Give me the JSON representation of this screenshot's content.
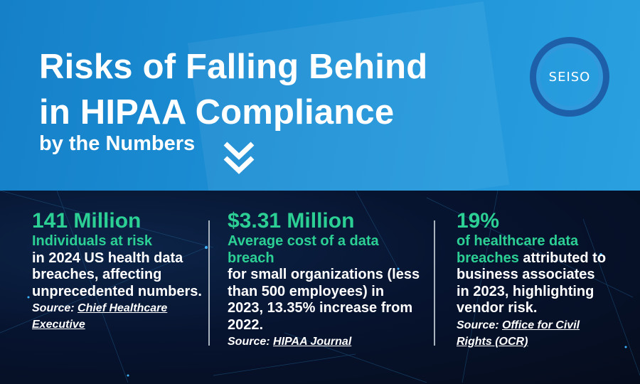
{
  "header": {
    "title_line1": "Risks of Falling Behind",
    "title_line2": "in HIPAA Compliance",
    "subtitle": "by the Numbers",
    "scroll_icon": "double-chevron-down-icon",
    "logo_text": "SEISO"
  },
  "stats": [
    {
      "value": "141 Million",
      "highlight": "Individuals at risk",
      "text": "in 2024 US health data breaches, affecting unprecedented numbers.",
      "source_label": "Source:",
      "source_link": "Chief Healthcare Executive"
    },
    {
      "value": "$3.31 Million",
      "highlight": "Average cost of a data breach",
      "text": "for small organizations (less than 500 employees) in 2023, 13.35% increase from 2022.",
      "source_label": "Source:",
      "source_link": "HIPAA Journal"
    },
    {
      "value": "19%",
      "highlight": "of healthcare data breaches",
      "text": " attributed to business associates in 2023, highlighting vendor risk.",
      "source_label": "Source:",
      "source_link": "Office for Civil Rights (OCR)"
    }
  ],
  "colors": {
    "accent": "#2ccf94",
    "header_bg": "#1e93d8",
    "body_bg": "#071430"
  }
}
